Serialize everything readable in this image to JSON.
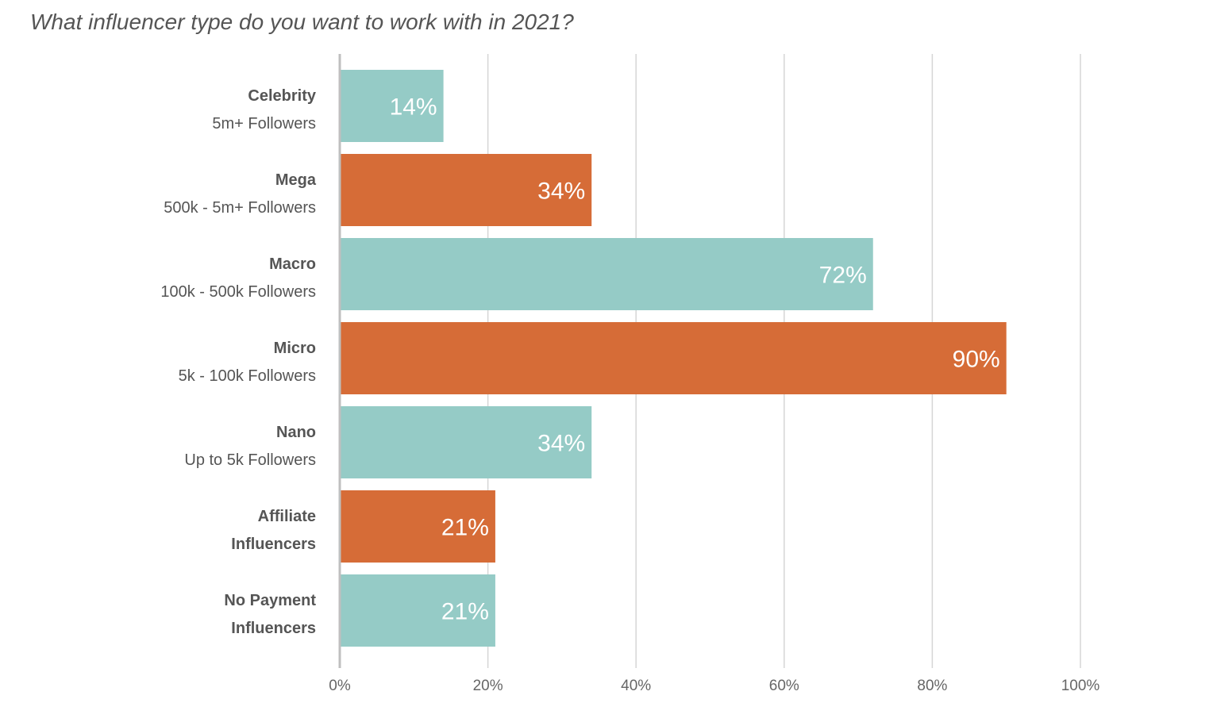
{
  "chart_data": {
    "type": "bar",
    "orientation": "horizontal",
    "title": "What influencer type do you want to work with in 2021?",
    "categories": [
      {
        "main": "Celebrity",
        "sub": "5m+ Followers",
        "sub_bold": false
      },
      {
        "main": "Mega",
        "sub": "500k - 5m+ Followers",
        "sub_bold": false
      },
      {
        "main": "Macro",
        "sub": "100k - 500k Followers",
        "sub_bold": false
      },
      {
        "main": "Micro",
        "sub": "5k - 100k Followers",
        "sub_bold": false
      },
      {
        "main": "Nano",
        "sub": "Up to 5k Followers",
        "sub_bold": false
      },
      {
        "main": "Affiliate",
        "sub": "Influencers",
        "sub_bold": true
      },
      {
        "main": "No Payment",
        "sub": "Influencers",
        "sub_bold": true
      }
    ],
    "values": [
      14,
      34,
      72,
      90,
      34,
      21,
      21
    ],
    "value_labels": [
      "14%",
      "34%",
      "72%",
      "90%",
      "34%",
      "21%",
      "21%"
    ],
    "bar_colors": [
      "#95cbc6",
      "#d66c37",
      "#95cbc6",
      "#d66c37",
      "#95cbc6",
      "#d66c37",
      "#95cbc6"
    ],
    "xlim": [
      0,
      100
    ],
    "x_ticks": [
      0,
      20,
      40,
      60,
      80,
      100
    ],
    "x_tick_labels": [
      "0%",
      "20%",
      "40%",
      "60%",
      "80%",
      "100%"
    ],
    "xlabel": "",
    "ylabel": "",
    "grid": true,
    "legend": "none"
  }
}
